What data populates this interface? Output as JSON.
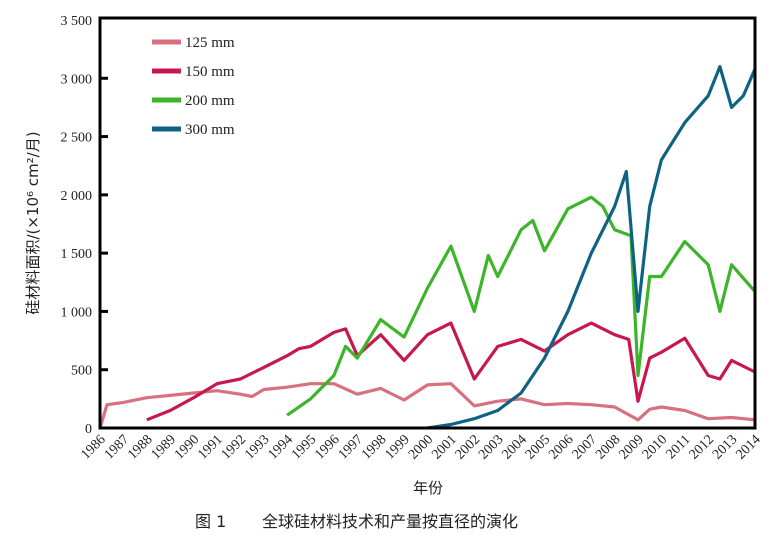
{
  "chart_data": {
    "type": "line",
    "title": "",
    "caption_label": "图 1",
    "caption": "全球硅材料技术和产量按直径的演化",
    "xlabel": "年份",
    "ylabel": "硅材料面积/(×10⁶ cm²/月)",
    "xlim": [
      1986,
      2014
    ],
    "ylim": [
      0,
      3500
    ],
    "x_ticks": [
      "1986",
      "1987",
      "1988",
      "1989",
      "1990",
      "1991",
      "1992",
      "1993",
      "1994",
      "1995",
      "1996",
      "1997",
      "1998",
      "1999",
      "2000",
      "2001",
      "2002",
      "2003",
      "2004",
      "2005",
      "2006",
      "2007",
      "2008",
      "2009",
      "2010",
      "2011",
      "2012",
      "2013",
      "2014"
    ],
    "y_ticks": [
      {
        "v": 0,
        "label": "0"
      },
      {
        "v": 500,
        "label": "500"
      },
      {
        "v": 1000,
        "label": "1 000"
      },
      {
        "v": 1500,
        "label": "1 500"
      },
      {
        "v": 2000,
        "label": "2 000"
      },
      {
        "v": 2500,
        "label": "2 500"
      },
      {
        "v": 3000,
        "label": "3 000"
      },
      {
        "v": 3500,
        "label": "3 500"
      }
    ],
    "grid": false,
    "legend_position": "top-left",
    "series": [
      {
        "name": "125 mm",
        "color": "#d9707f",
        "points": [
          [
            1986,
            0
          ],
          [
            1986.3,
            200
          ],
          [
            1987,
            220
          ],
          [
            1988,
            260
          ],
          [
            1989,
            280
          ],
          [
            1990,
            300
          ],
          [
            1991,
            320
          ],
          [
            1992,
            290
          ],
          [
            1992.5,
            270
          ],
          [
            1993,
            330
          ],
          [
            1994,
            350
          ],
          [
            1995,
            380
          ],
          [
            1996,
            380
          ],
          [
            1997,
            290
          ],
          [
            1998,
            340
          ],
          [
            1999,
            240
          ],
          [
            2000,
            370
          ],
          [
            2001,
            380
          ],
          [
            2002,
            190
          ],
          [
            2003,
            230
          ],
          [
            2004,
            250
          ],
          [
            2005,
            200
          ],
          [
            2006,
            210
          ],
          [
            2007,
            200
          ],
          [
            2008,
            180
          ],
          [
            2009,
            70
          ],
          [
            2009.5,
            160
          ],
          [
            2010,
            180
          ],
          [
            2011,
            150
          ],
          [
            2012,
            80
          ],
          [
            2013,
            90
          ],
          [
            2014,
            70
          ]
        ]
      },
      {
        "name": "150 mm",
        "color": "#c8174f",
        "points": [
          [
            1988,
            70
          ],
          [
            1989,
            150
          ],
          [
            1990,
            260
          ],
          [
            1991,
            380
          ],
          [
            1992,
            420
          ],
          [
            1993,
            520
          ],
          [
            1994,
            620
          ],
          [
            1994.5,
            680
          ],
          [
            1995,
            700
          ],
          [
            1996,
            820
          ],
          [
            1996.5,
            850
          ],
          [
            1997,
            620
          ],
          [
            1998,
            800
          ],
          [
            1999,
            580
          ],
          [
            2000,
            800
          ],
          [
            2001,
            900
          ],
          [
            2002,
            420
          ],
          [
            2003,
            700
          ],
          [
            2004,
            760
          ],
          [
            2005,
            660
          ],
          [
            2006,
            800
          ],
          [
            2007,
            900
          ],
          [
            2008,
            800
          ],
          [
            2008.6,
            760
          ],
          [
            2009,
            230
          ],
          [
            2009.5,
            600
          ],
          [
            2010,
            650
          ],
          [
            2011,
            770
          ],
          [
            2012,
            450
          ],
          [
            2012.5,
            420
          ],
          [
            2013,
            580
          ],
          [
            2014,
            480
          ]
        ]
      },
      {
        "name": "200 mm",
        "color": "#3cb52a",
        "points": [
          [
            1994,
            110
          ],
          [
            1995,
            250
          ],
          [
            1996,
            450
          ],
          [
            1996.5,
            700
          ],
          [
            1997,
            600
          ],
          [
            1998,
            930
          ],
          [
            1999,
            780
          ],
          [
            2000,
            1200
          ],
          [
            2001,
            1560
          ],
          [
            2002,
            1000
          ],
          [
            2002.6,
            1480
          ],
          [
            2003,
            1300
          ],
          [
            2004,
            1700
          ],
          [
            2004.5,
            1780
          ],
          [
            2005,
            1520
          ],
          [
            2006,
            1880
          ],
          [
            2007,
            1980
          ],
          [
            2007.5,
            1900
          ],
          [
            2008,
            1700
          ],
          [
            2008.7,
            1650
          ],
          [
            2009,
            450
          ],
          [
            2009.5,
            1300
          ],
          [
            2010,
            1300
          ],
          [
            2011,
            1600
          ],
          [
            2012,
            1400
          ],
          [
            2012.5,
            1000
          ],
          [
            2013,
            1400
          ],
          [
            2014,
            1170
          ]
        ]
      },
      {
        "name": "300 mm",
        "color": "#0f6382",
        "points": [
          [
            2000,
            0
          ],
          [
            2001,
            30
          ],
          [
            2002,
            80
          ],
          [
            2003,
            150
          ],
          [
            2004,
            300
          ],
          [
            2005,
            600
          ],
          [
            2006,
            1000
          ],
          [
            2007,
            1500
          ],
          [
            2008,
            1900
          ],
          [
            2008.5,
            2200
          ],
          [
            2009,
            1000
          ],
          [
            2009.5,
            1900
          ],
          [
            2010,
            2300
          ],
          [
            2011,
            2620
          ],
          [
            2012,
            2850
          ],
          [
            2012.5,
            3100
          ],
          [
            2013,
            2750
          ],
          [
            2013.5,
            2850
          ],
          [
            2014,
            3080
          ]
        ]
      }
    ]
  }
}
